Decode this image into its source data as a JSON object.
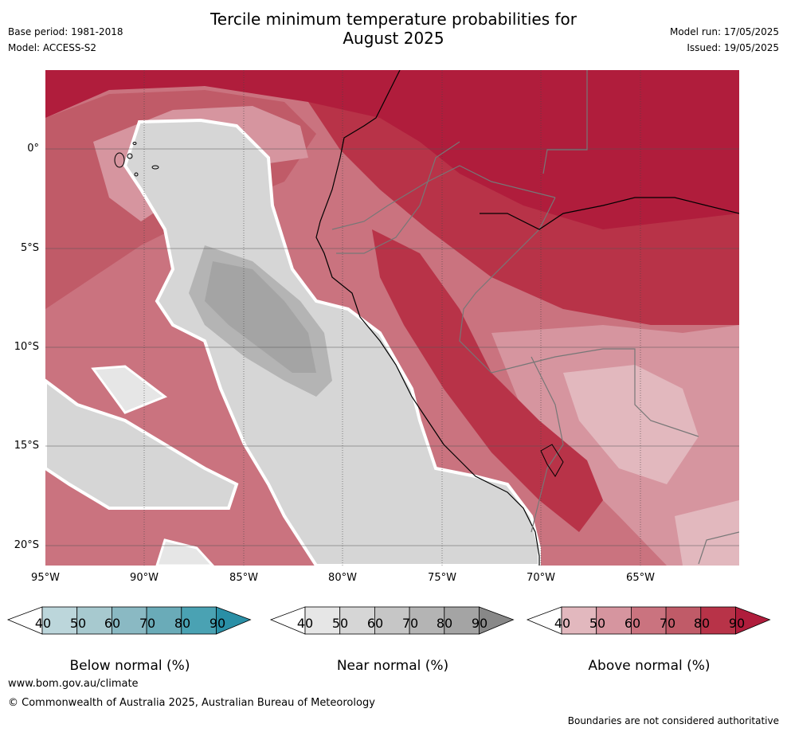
{
  "header": {
    "title_line1": "Tercile minimum temperature probabilities for",
    "title_line2": "August 2025",
    "base_period": "Base period: 1981-2018",
    "model": "Model: ACCESS-S2",
    "model_run": "Model run: 17/05/2025",
    "issued": "Issued: 19/05/2025"
  },
  "map": {
    "lat_ticks": [
      "0°",
      "5°S",
      "10°S",
      "15°S",
      "20°S"
    ],
    "lon_ticks": [
      "95°W",
      "90°W",
      "85°W",
      "80°W",
      "75°W",
      "70°W",
      "65°W"
    ]
  },
  "colorbars": [
    {
      "label": "Below normal (%)",
      "ticks": [
        "40",
        "50",
        "60",
        "70",
        "80",
        "90"
      ],
      "colors": [
        "#ffffff",
        "#bcd6db",
        "#a7c9cf",
        "#8ab9c3",
        "#6aabb8",
        "#4aa2b3",
        "#2a8fa6"
      ]
    },
    {
      "label": "Near normal (%)",
      "ticks": [
        "40",
        "50",
        "60",
        "70",
        "80",
        "90"
      ],
      "colors": [
        "#ffffff",
        "#e6e6e6",
        "#d6d6d6",
        "#c6c6c6",
        "#b4b4b4",
        "#a4a4a4",
        "#888888"
      ]
    },
    {
      "label": "Above normal (%)",
      "ticks": [
        "40",
        "50",
        "60",
        "70",
        "80",
        "90"
      ],
      "colors": [
        "#ffffff",
        "#e2b8be",
        "#d6959f",
        "#ca737f",
        "#c05b68",
        "#b83348",
        "#b01d3c"
      ]
    }
  ],
  "footer": {
    "url": "www.bom.gov.au/climate",
    "copyright": "© Commonwealth of Australia 2025, Australian Bureau of Meteorology",
    "disclaimer": "Boundaries are not considered authoritative"
  }
}
